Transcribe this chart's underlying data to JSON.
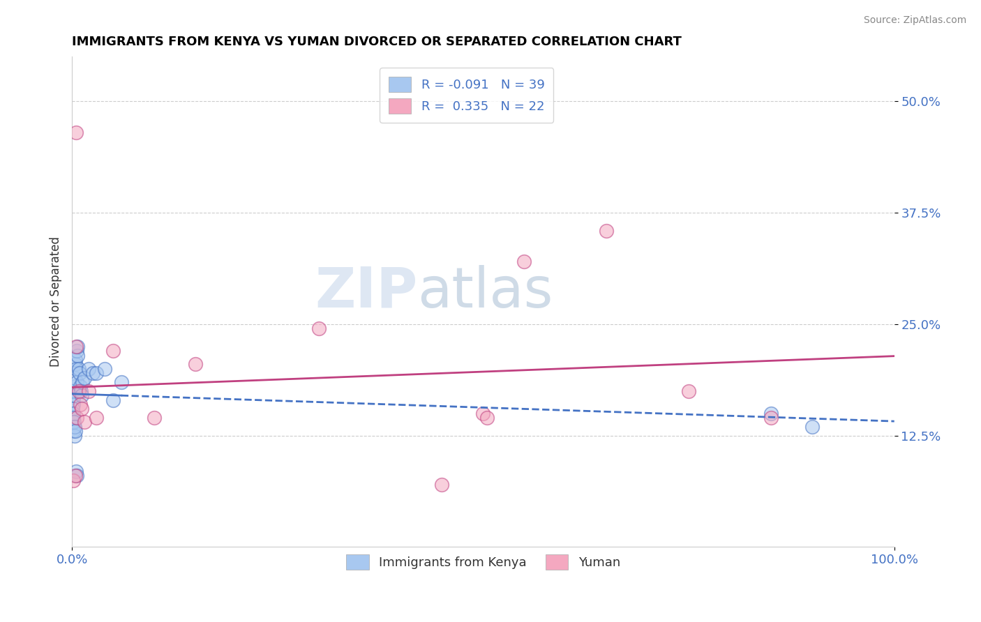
{
  "title": "IMMIGRANTS FROM KENYA VS YUMAN DIVORCED OR SEPARATED CORRELATION CHART",
  "source": "Source: ZipAtlas.com",
  "ylabel": "Divorced or Separated",
  "xlim": [
    0.0,
    100.0
  ],
  "ylim": [
    0.0,
    55.0
  ],
  "yticks": [
    12.5,
    25.0,
    37.5,
    50.0
  ],
  "legend_r1": "R = -0.091",
  "legend_n1": "N = 39",
  "legend_r2": "R =  0.335",
  "legend_n2": "N = 22",
  "color_blue": "#A8C8F0",
  "color_pink": "#F4A8C0",
  "trendline_blue": "#4472C4",
  "trendline_pink": "#C04080",
  "blue_scatter_x": [
    0.1,
    0.15,
    0.2,
    0.25,
    0.3,
    0.35,
    0.4,
    0.45,
    0.5,
    0.55,
    0.6,
    0.65,
    0.7,
    0.8,
    0.9,
    1.0,
    1.1,
    1.2,
    1.3,
    1.5,
    2.0,
    2.5,
    3.0,
    4.0,
    5.0,
    6.0,
    0.1,
    0.2,
    0.3,
    0.1,
    0.15,
    0.2,
    0.25,
    0.3,
    0.4,
    0.5,
    0.6,
    85.0,
    90.0
  ],
  "blue_scatter_y": [
    17.5,
    16.5,
    16.0,
    17.0,
    18.0,
    19.0,
    20.5,
    21.0,
    20.0,
    18.5,
    22.0,
    21.5,
    22.5,
    20.0,
    19.5,
    18.0,
    17.5,
    17.0,
    18.5,
    19.0,
    20.0,
    19.5,
    19.5,
    20.0,
    16.5,
    18.5,
    14.0,
    13.0,
    12.5,
    15.5,
    15.0,
    14.5,
    14.0,
    13.5,
    13.0,
    8.5,
    8.0,
    15.0,
    13.5
  ],
  "pink_scatter_x": [
    0.2,
    0.4,
    0.5,
    0.6,
    0.8,
    1.0,
    1.2,
    1.5,
    2.0,
    3.0,
    5.0,
    10.0,
    15.0,
    30.0,
    45.0,
    55.0,
    65.0,
    75.0,
    85.0,
    50.0,
    50.5,
    0.5
  ],
  "pink_scatter_y": [
    7.5,
    8.0,
    22.5,
    14.5,
    17.5,
    16.0,
    15.5,
    14.0,
    17.5,
    14.5,
    22.0,
    14.5,
    20.5,
    24.5,
    7.0,
    32.0,
    35.5,
    17.5,
    14.5,
    15.0,
    14.5,
    46.5
  ]
}
